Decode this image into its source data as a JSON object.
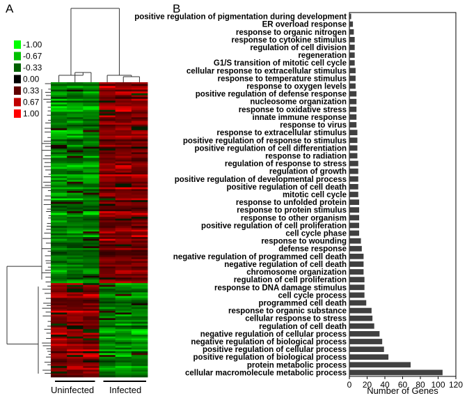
{
  "panels": {
    "a": "A",
    "b": "B"
  },
  "chart_data": [
    {
      "type": "heatmap",
      "legend": {
        "values": [
          "-1.00",
          "-0.67",
          "-0.33",
          "0.00",
          "0.33",
          "0.67",
          "1.00"
        ],
        "colors": [
          "#00ff00",
          "#00c000",
          "#006000",
          "#000000",
          "#600000",
          "#c00000",
          "#ff0000"
        ]
      },
      "groups": [
        {
          "name": "Uninfected",
          "samples": 3
        },
        {
          "name": "Infected",
          "samples": 3
        }
      ],
      "color_scale": {
        "low": "#00ff00",
        "mid": "#000000",
        "high": "#ff0000"
      }
    },
    {
      "type": "bar",
      "orientation": "horizontal",
      "categories": [
        "positive regulation of pigmentation during development",
        "ER overload response",
        "response to organic nitrogen",
        "response to cytokine stimulus",
        "regulation of cell division",
        "regeneration",
        "G1/S transition of mitotic cell cycle",
        "cellular response to extracellular stimulus",
        "response to temperature stimulus",
        "response to oxygen levels",
        "positive regulation of defense response",
        "nucleosome organization",
        "response to oxidative stress",
        "innate immune response",
        "response to virus",
        "response to extracellular stimulus",
        "positive regulation of response to stimulus",
        "positive regulation of cell differentiation",
        "response to radiation",
        "regulation of response to stress",
        "regulation of growth",
        "positive regulation of developmental process",
        "positive regulation of cell death",
        "mitotic cell cycle",
        "response to unfolded protein",
        "response to protein stimulus",
        "response to other organism",
        "positive regulation of cell proliferation",
        "cell cycle phase",
        "response to wounding",
        "defense response",
        "negative regulation of programmed cell death",
        "negative regulation of cell death",
        "chromosome organization",
        "regulation of cell proliferation",
        "response to DNA damage stimulus",
        "cell cycle process",
        "programmed cell death",
        "response to organic substance",
        "cellular response to stress",
        "regulation of cell death",
        "negative regulation of cellular process",
        "negative regulation of biological process",
        "positive regulation of cellular process",
        "positive regulation of biological process",
        "protein metabolic process",
        "cellular macromolecule metabolic process"
      ],
      "values": [
        2,
        4,
        5,
        6,
        6,
        6,
        6,
        7,
        7,
        7,
        8,
        8,
        8,
        8,
        8,
        9,
        9,
        9,
        9,
        10,
        10,
        10,
        10,
        10,
        11,
        11,
        11,
        11,
        11,
        13,
        14,
        16,
        16,
        16,
        17,
        17,
        17,
        19,
        25,
        26,
        28,
        34,
        37,
        39,
        44,
        69,
        105
      ],
      "xlabel": "Number of Genes",
      "xlim": [
        0,
        120
      ],
      "xticks": [
        "0",
        "20",
        "40",
        "60",
        "80",
        "100",
        "120"
      ],
      "bar_color": "#404040"
    }
  ]
}
